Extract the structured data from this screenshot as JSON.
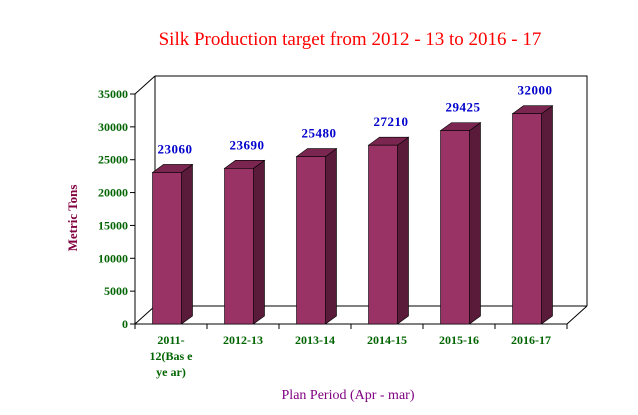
{
  "chart_data": {
    "type": "bar",
    "title": "Silk Production target from 2012 - 13 to 2016 - 17",
    "xlabel": "Plan Period (Apr - mar)",
    "ylabel": "Metric Tons",
    "categories": [
      [
        "2011-",
        "12(Bas e",
        "ye ar)"
      ],
      [
        "2012-13"
      ],
      [
        "2013-14"
      ],
      [
        "2014-15"
      ],
      [
        "2015-16"
      ],
      [
        "2016-17"
      ]
    ],
    "values": [
      23060,
      23690,
      25480,
      27210,
      29425,
      32000
    ],
    "data_labels": [
      "23060",
      "23690",
      "25480",
      "27210",
      "29425",
      "32000"
    ],
    "yticks": [
      "0",
      "5000",
      "10000",
      "15000",
      "20000",
      "25000",
      "30000",
      "35000"
    ],
    "ylim": [
      0,
      35000
    ],
    "grid": false,
    "legend": "none",
    "three_d": true,
    "colors": {
      "bar_front": "#993366",
      "bar_side": "#5a1a3a",
      "bar_top": "#7a2650",
      "title": "#ff0000",
      "tick_text": "#006400",
      "data_label": "#0000cc",
      "axis_title": "#800080"
    }
  }
}
